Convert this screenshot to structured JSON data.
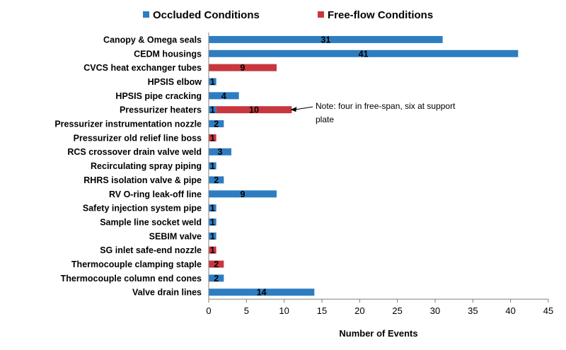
{
  "chart_data": {
    "type": "bar",
    "orientation": "horizontal",
    "stacked": true,
    "categories": [
      "Canopy  & Omega seals",
      "CEDM housings",
      "CVCS heat exchanger tubes",
      "HPSIS elbow",
      "HPSIS pipe cracking",
      "Pressurizer heaters",
      "Pressurizer instrumentation nozzle",
      "Pressurizer old relief line boss",
      "RCS crossover drain valve weld",
      "Recirculating spray piping",
      "RHRS isolation valve & pipe",
      "RV O-ring leak-off line",
      "Safety injection system pipe",
      "Sample line socket weld",
      "SEBIM valve",
      "SG inlet safe-end nozzle",
      "Thermocouple clamping staple",
      "Thermocouple column end cones",
      "Valve drain lines"
    ],
    "series": [
      {
        "name": "Occluded Conditions",
        "color": "#2E7DC1",
        "values": [
          31,
          41,
          0,
          1,
          4,
          1,
          2,
          0,
          3,
          1,
          2,
          9,
          1,
          1,
          1,
          0,
          0,
          2,
          14
        ]
      },
      {
        "name": "Free-flow Conditions",
        "color": "#C8373F",
        "values": [
          0,
          0,
          9,
          0,
          0,
          10,
          0,
          1,
          0,
          0,
          0,
          0,
          0,
          0,
          0,
          1,
          2,
          0,
          0
        ]
      }
    ],
    "xlabel": "Number of Events",
    "ylabel": "",
    "xlim": [
      0,
      45
    ],
    "xticks": [
      0,
      5,
      10,
      15,
      20,
      25,
      30,
      35,
      40,
      45
    ],
    "legend_position": "top",
    "grid": false,
    "annotation": {
      "category": "Pressurizer heaters",
      "lines": [
        "Note: four in free-span, six at  support",
        "plate"
      ]
    }
  }
}
